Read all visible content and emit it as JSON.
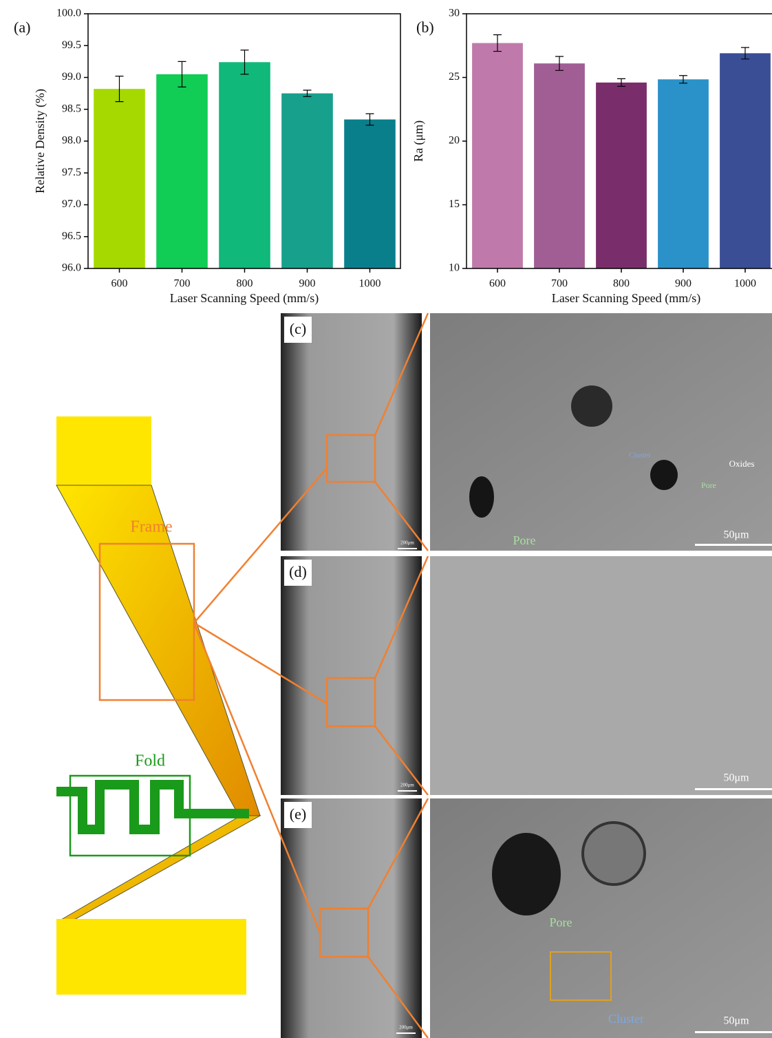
{
  "chart_data": [
    {
      "type": "bar",
      "label": "(a)",
      "x_label": "Laser Scanning Speed (mm/s)",
      "y_label": "Relative Density (%)",
      "categories": [
        "600",
        "700",
        "800",
        "900",
        "1000"
      ],
      "values": [
        98.82,
        99.05,
        99.24,
        98.75,
        98.34
      ],
      "errors": [
        0.2,
        0.2,
        0.19,
        0.05,
        0.09
      ],
      "colors": [
        "#a6d900",
        "#11cc55",
        "#10b87a",
        "#17a08c",
        "#0a7f8c"
      ],
      "ylim": [
        96,
        100
      ],
      "yticks": [
        {
          "value": 96,
          "label": "96.0"
        },
        {
          "value": 96.5,
          "label": "96.5"
        },
        {
          "value": 97,
          "label": "97.0"
        },
        {
          "value": 97.5,
          "label": "97.5"
        },
        {
          "value": 98,
          "label": "98.0"
        },
        {
          "value": 98.5,
          "label": "98.5"
        },
        {
          "value": 99,
          "label": "99.0"
        },
        {
          "value": 99.5,
          "label": "99.5"
        },
        {
          "value": 100,
          "label": "100.0"
        }
      ]
    },
    {
      "type": "bar",
      "label": "(b)",
      "x_label": "Laser Scanning Speed (mm/s)",
      "y_label": "Ra (μm)",
      "categories": [
        "600",
        "700",
        "800",
        "900",
        "1000"
      ],
      "values": [
        27.7,
        26.1,
        24.6,
        24.85,
        26.9
      ],
      "errors": [
        0.65,
        0.55,
        0.3,
        0.3,
        0.45
      ],
      "colors": [
        "#bf7aab",
        "#a15e95",
        "#7a2d6b",
        "#2a92c9",
        "#3a4e96"
      ],
      "ylim": [
        10,
        30
      ],
      "yticks": [
        10,
        15,
        20,
        25,
        30
      ]
    }
  ],
  "schematic": {
    "frame": "Frame",
    "fold": "Fold"
  },
  "panels": [
    {
      "label": "(c)",
      "scale_low": "200μm",
      "scale_high": "50μm",
      "annotations": [
        "Cluster",
        "Pore",
        "Oxides",
        "Pore"
      ]
    },
    {
      "label": "(d)",
      "scale_low": "200μm",
      "scale_high": "50μm"
    },
    {
      "label": "(e)",
      "scale_low": "200μm",
      "scale_high": "50μm",
      "annotations": [
        "Pore",
        "Cluster"
      ]
    }
  ]
}
